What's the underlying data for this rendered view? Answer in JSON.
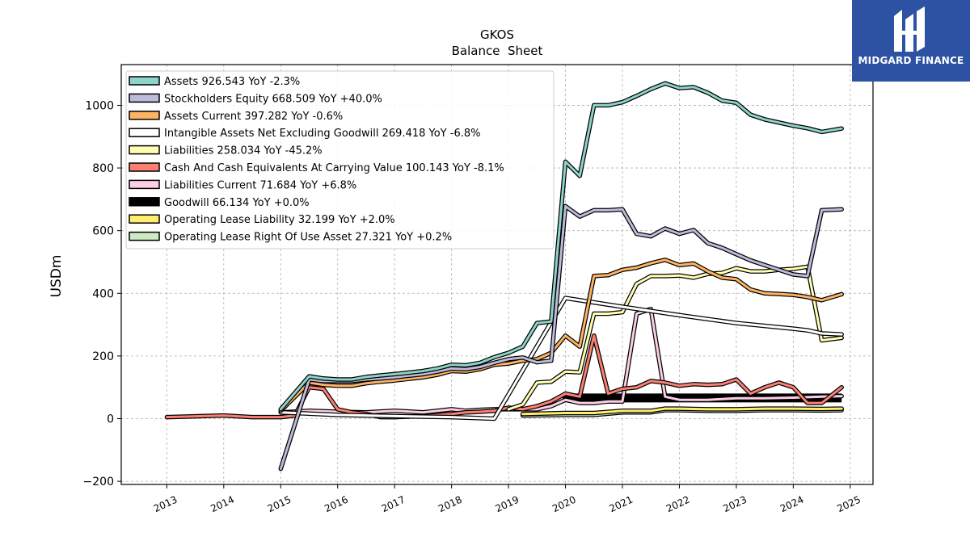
{
  "logo": {
    "text": "MIDGARD FINANCE"
  },
  "chart_data": {
    "type": "line",
    "title": "GKOS",
    "subtitle": "Balance  Sheet",
    "ylabel": "USDm",
    "xlabel": "",
    "xlim": [
      2012.2,
      2025.4
    ],
    "ylim": [
      -210,
      1130
    ],
    "xticks": [
      2013,
      2014,
      2015,
      2016,
      2017,
      2018,
      2019,
      2020,
      2021,
      2022,
      2023,
      2024,
      2025
    ],
    "yticks": [
      -200,
      0,
      200,
      400,
      600,
      800,
      1000
    ],
    "grid": true,
    "legend_position": "upper-left",
    "series": [
      {
        "name": "Assets  926.543 YoY -2.3%",
        "color": "#8dd3c7",
        "points": [
          [
            2015.0,
            30
          ],
          [
            2015.5,
            135
          ],
          [
            2015.75,
            128
          ],
          [
            2016.0,
            125
          ],
          [
            2016.25,
            125
          ],
          [
            2016.5,
            133
          ],
          [
            2016.75,
            138
          ],
          [
            2017.0,
            142
          ],
          [
            2017.25,
            147
          ],
          [
            2017.5,
            152
          ],
          [
            2017.75,
            160
          ],
          [
            2018.0,
            172
          ],
          [
            2018.25,
            170
          ],
          [
            2018.5,
            178
          ],
          [
            2018.75,
            196
          ],
          [
            2019.0,
            210
          ],
          [
            2019.25,
            230
          ],
          [
            2019.5,
            305
          ],
          [
            2019.75,
            310
          ],
          [
            2020.0,
            820
          ],
          [
            2020.25,
            775
          ],
          [
            2020.5,
            1000
          ],
          [
            2020.75,
            1000
          ],
          [
            2021.0,
            1010
          ],
          [
            2021.25,
            1030
          ],
          [
            2021.5,
            1052
          ],
          [
            2021.75,
            1070
          ],
          [
            2022.0,
            1055
          ],
          [
            2022.25,
            1058
          ],
          [
            2022.5,
            1040
          ],
          [
            2022.75,
            1015
          ],
          [
            2023.0,
            1008
          ],
          [
            2023.25,
            970
          ],
          [
            2023.5,
            955
          ],
          [
            2023.75,
            945
          ],
          [
            2024.0,
            935
          ],
          [
            2024.25,
            927
          ],
          [
            2024.5,
            915
          ],
          [
            2024.85,
            926
          ]
        ]
      },
      {
        "name": "Stockholders Equity  668.509 YoY +40.0%",
        "color": "#bebada",
        "points": [
          [
            2015.0,
            -160
          ],
          [
            2015.5,
            125
          ],
          [
            2015.75,
            120
          ],
          [
            2016.0,
            120
          ],
          [
            2016.25,
            120
          ],
          [
            2016.5,
            125
          ],
          [
            2016.75,
            128
          ],
          [
            2017.0,
            132
          ],
          [
            2017.25,
            137
          ],
          [
            2017.5,
            142
          ],
          [
            2017.75,
            150
          ],
          [
            2018.0,
            160
          ],
          [
            2018.25,
            158
          ],
          [
            2018.5,
            165
          ],
          [
            2018.75,
            178
          ],
          [
            2019.0,
            190
          ],
          [
            2019.25,
            195
          ],
          [
            2019.5,
            180
          ],
          [
            2019.75,
            185
          ],
          [
            2020.0,
            678
          ],
          [
            2020.25,
            645
          ],
          [
            2020.5,
            665
          ],
          [
            2020.75,
            665
          ],
          [
            2021.0,
            668
          ],
          [
            2021.25,
            590
          ],
          [
            2021.5,
            582
          ],
          [
            2021.75,
            607
          ],
          [
            2022.0,
            590
          ],
          [
            2022.25,
            602
          ],
          [
            2022.5,
            560
          ],
          [
            2022.75,
            545
          ],
          [
            2023.0,
            525
          ],
          [
            2023.25,
            505
          ],
          [
            2023.5,
            490
          ],
          [
            2023.75,
            475
          ],
          [
            2024.0,
            460
          ],
          [
            2024.25,
            455
          ],
          [
            2024.5,
            665
          ],
          [
            2024.85,
            668
          ]
        ]
      },
      {
        "name": "Assets Current  397.282 YoY -0.6%",
        "color": "#fdb462",
        "points": [
          [
            2015.0,
            25
          ],
          [
            2015.5,
            115
          ],
          [
            2015.75,
            108
          ],
          [
            2016.0,
            105
          ],
          [
            2016.25,
            105
          ],
          [
            2016.5,
            113
          ],
          [
            2016.75,
            118
          ],
          [
            2017.0,
            122
          ],
          [
            2017.25,
            127
          ],
          [
            2017.5,
            132
          ],
          [
            2017.75,
            140
          ],
          [
            2018.0,
            152
          ],
          [
            2018.25,
            150
          ],
          [
            2018.5,
            158
          ],
          [
            2018.75,
            172
          ],
          [
            2019.0,
            176
          ],
          [
            2019.25,
            185
          ],
          [
            2019.5,
            190
          ],
          [
            2019.75,
            210
          ],
          [
            2020.0,
            265
          ],
          [
            2020.25,
            230
          ],
          [
            2020.5,
            455
          ],
          [
            2020.75,
            458
          ],
          [
            2021.0,
            475
          ],
          [
            2021.25,
            482
          ],
          [
            2021.5,
            496
          ],
          [
            2021.75,
            507
          ],
          [
            2022.0,
            490
          ],
          [
            2022.25,
            495
          ],
          [
            2022.5,
            470
          ],
          [
            2022.75,
            450
          ],
          [
            2023.0,
            445
          ],
          [
            2023.25,
            412
          ],
          [
            2023.5,
            400
          ],
          [
            2023.75,
            398
          ],
          [
            2024.0,
            395
          ],
          [
            2024.25,
            388
          ],
          [
            2024.5,
            378
          ],
          [
            2024.85,
            397
          ]
        ]
      },
      {
        "name": "Intangible Assets Net Excluding Goodwill  269.418 YoY -6.8%",
        "color": "#ffffff",
        "points": [
          [
            2015.0,
            20
          ],
          [
            2016.0,
            12
          ],
          [
            2017.0,
            8
          ],
          [
            2018.0,
            5
          ],
          [
            2018.75,
            0
          ],
          [
            2020.0,
            385
          ],
          [
            2021.0,
            357
          ],
          [
            2022.0,
            330
          ],
          [
            2023.0,
            305
          ],
          [
            2024.0,
            287
          ],
          [
            2024.25,
            282
          ],
          [
            2024.5,
            272
          ],
          [
            2024.85,
            269
          ]
        ]
      },
      {
        "name": "Liabilities  258.034 YoY -45.2%",
        "color": "#ffffb3",
        "points": [
          [
            2019.0,
            30
          ],
          [
            2019.25,
            45
          ],
          [
            2019.5,
            115
          ],
          [
            2019.75,
            118
          ],
          [
            2020.0,
            150
          ],
          [
            2020.25,
            148
          ],
          [
            2020.5,
            335
          ],
          [
            2020.75,
            335
          ],
          [
            2021.0,
            340
          ],
          [
            2021.25,
            430
          ],
          [
            2021.5,
            455
          ],
          [
            2021.75,
            455
          ],
          [
            2022.0,
            457
          ],
          [
            2022.25,
            450
          ],
          [
            2022.5,
            462
          ],
          [
            2022.75,
            465
          ],
          [
            2023.0,
            480
          ],
          [
            2023.25,
            470
          ],
          [
            2023.5,
            470
          ],
          [
            2023.75,
            475
          ],
          [
            2024.0,
            478
          ],
          [
            2024.25,
            485
          ],
          [
            2024.5,
            250
          ],
          [
            2024.85,
            258
          ]
        ]
      },
      {
        "name": "Cash And Cash Equivalents At Carrying Value  100.143 YoY -8.1%",
        "color": "#fb8072",
        "points": [
          [
            2013.0,
            5
          ],
          [
            2014.0,
            10
          ],
          [
            2014.5,
            5
          ],
          [
            2015.0,
            5
          ],
          [
            2015.25,
            10
          ],
          [
            2015.5,
            100
          ],
          [
            2015.75,
            95
          ],
          [
            2016.0,
            30
          ],
          [
            2016.25,
            20
          ],
          [
            2016.5,
            15
          ],
          [
            2016.75,
            5
          ],
          [
            2017.0,
            5
          ],
          [
            2017.5,
            8
          ],
          [
            2018.0,
            15
          ],
          [
            2018.25,
            20
          ],
          [
            2018.5,
            22
          ],
          [
            2018.75,
            25
          ],
          [
            2019.0,
            35
          ],
          [
            2019.25,
            30
          ],
          [
            2019.5,
            40
          ],
          [
            2019.75,
            55
          ],
          [
            2020.0,
            80
          ],
          [
            2020.25,
            70
          ],
          [
            2020.5,
            265
          ],
          [
            2020.75,
            80
          ],
          [
            2021.0,
            95
          ],
          [
            2021.25,
            100
          ],
          [
            2021.5,
            120
          ],
          [
            2021.75,
            115
          ],
          [
            2022.0,
            105
          ],
          [
            2022.25,
            110
          ],
          [
            2022.5,
            108
          ],
          [
            2022.75,
            110
          ],
          [
            2023.0,
            125
          ],
          [
            2023.25,
            80
          ],
          [
            2023.5,
            100
          ],
          [
            2023.75,
            115
          ],
          [
            2024.0,
            100
          ],
          [
            2024.25,
            50
          ],
          [
            2024.5,
            50
          ],
          [
            2024.85,
            100
          ]
        ]
      },
      {
        "name": "Liabilities Current  71.684 YoY +6.8%",
        "color": "#fccde5",
        "points": [
          [
            2015.0,
            20
          ],
          [
            2015.5,
            25
          ],
          [
            2016.0,
            22
          ],
          [
            2016.5,
            20
          ],
          [
            2017.0,
            25
          ],
          [
            2017.5,
            20
          ],
          [
            2018.0,
            30
          ],
          [
            2018.25,
            25
          ],
          [
            2018.5,
            28
          ],
          [
            2018.75,
            30
          ],
          [
            2019.0,
            30
          ],
          [
            2019.5,
            30
          ],
          [
            2019.75,
            40
          ],
          [
            2020.0,
            60
          ],
          [
            2020.25,
            50
          ],
          [
            2020.5,
            50
          ],
          [
            2020.75,
            55
          ],
          [
            2021.0,
            55
          ],
          [
            2021.25,
            335
          ],
          [
            2021.5,
            350
          ],
          [
            2021.75,
            70
          ],
          [
            2022.0,
            60
          ],
          [
            2022.5,
            60
          ],
          [
            2023.0,
            65
          ],
          [
            2023.5,
            65
          ],
          [
            2024.0,
            67
          ],
          [
            2024.5,
            70
          ],
          [
            2024.85,
            72
          ]
        ]
      },
      {
        "name": "Goodwill  66.134 YoY +0.0%",
        "color": "#000000",
        "points": [
          [
            2019.95,
            66
          ],
          [
            2024.85,
            66
          ]
        ]
      },
      {
        "name": "Operating Lease Liability  32.199 YoY +2.0%",
        "color": "#ffed6f",
        "points": [
          [
            2019.25,
            15
          ],
          [
            2020.0,
            18
          ],
          [
            2020.5,
            18
          ],
          [
            2021.0,
            25
          ],
          [
            2021.5,
            25
          ],
          [
            2021.75,
            32
          ],
          [
            2022.0,
            32
          ],
          [
            2022.5,
            30
          ],
          [
            2023.0,
            30
          ],
          [
            2023.5,
            32
          ],
          [
            2024.0,
            32
          ],
          [
            2024.5,
            31
          ],
          [
            2024.85,
            32
          ]
        ]
      },
      {
        "name": "Operating Lease Right Of Use Asset  27.321 YoY +0.2%",
        "color": "#ccebc5",
        "points": [
          [
            2019.25,
            10
          ],
          [
            2020.0,
            12
          ],
          [
            2020.5,
            12
          ],
          [
            2021.0,
            20
          ],
          [
            2021.5,
            20
          ],
          [
            2021.75,
            27
          ],
          [
            2022.0,
            27
          ],
          [
            2022.5,
            25
          ],
          [
            2023.0,
            25
          ],
          [
            2023.5,
            27
          ],
          [
            2024.0,
            27
          ],
          [
            2024.5,
            26
          ],
          [
            2024.85,
            27
          ]
        ]
      }
    ]
  }
}
